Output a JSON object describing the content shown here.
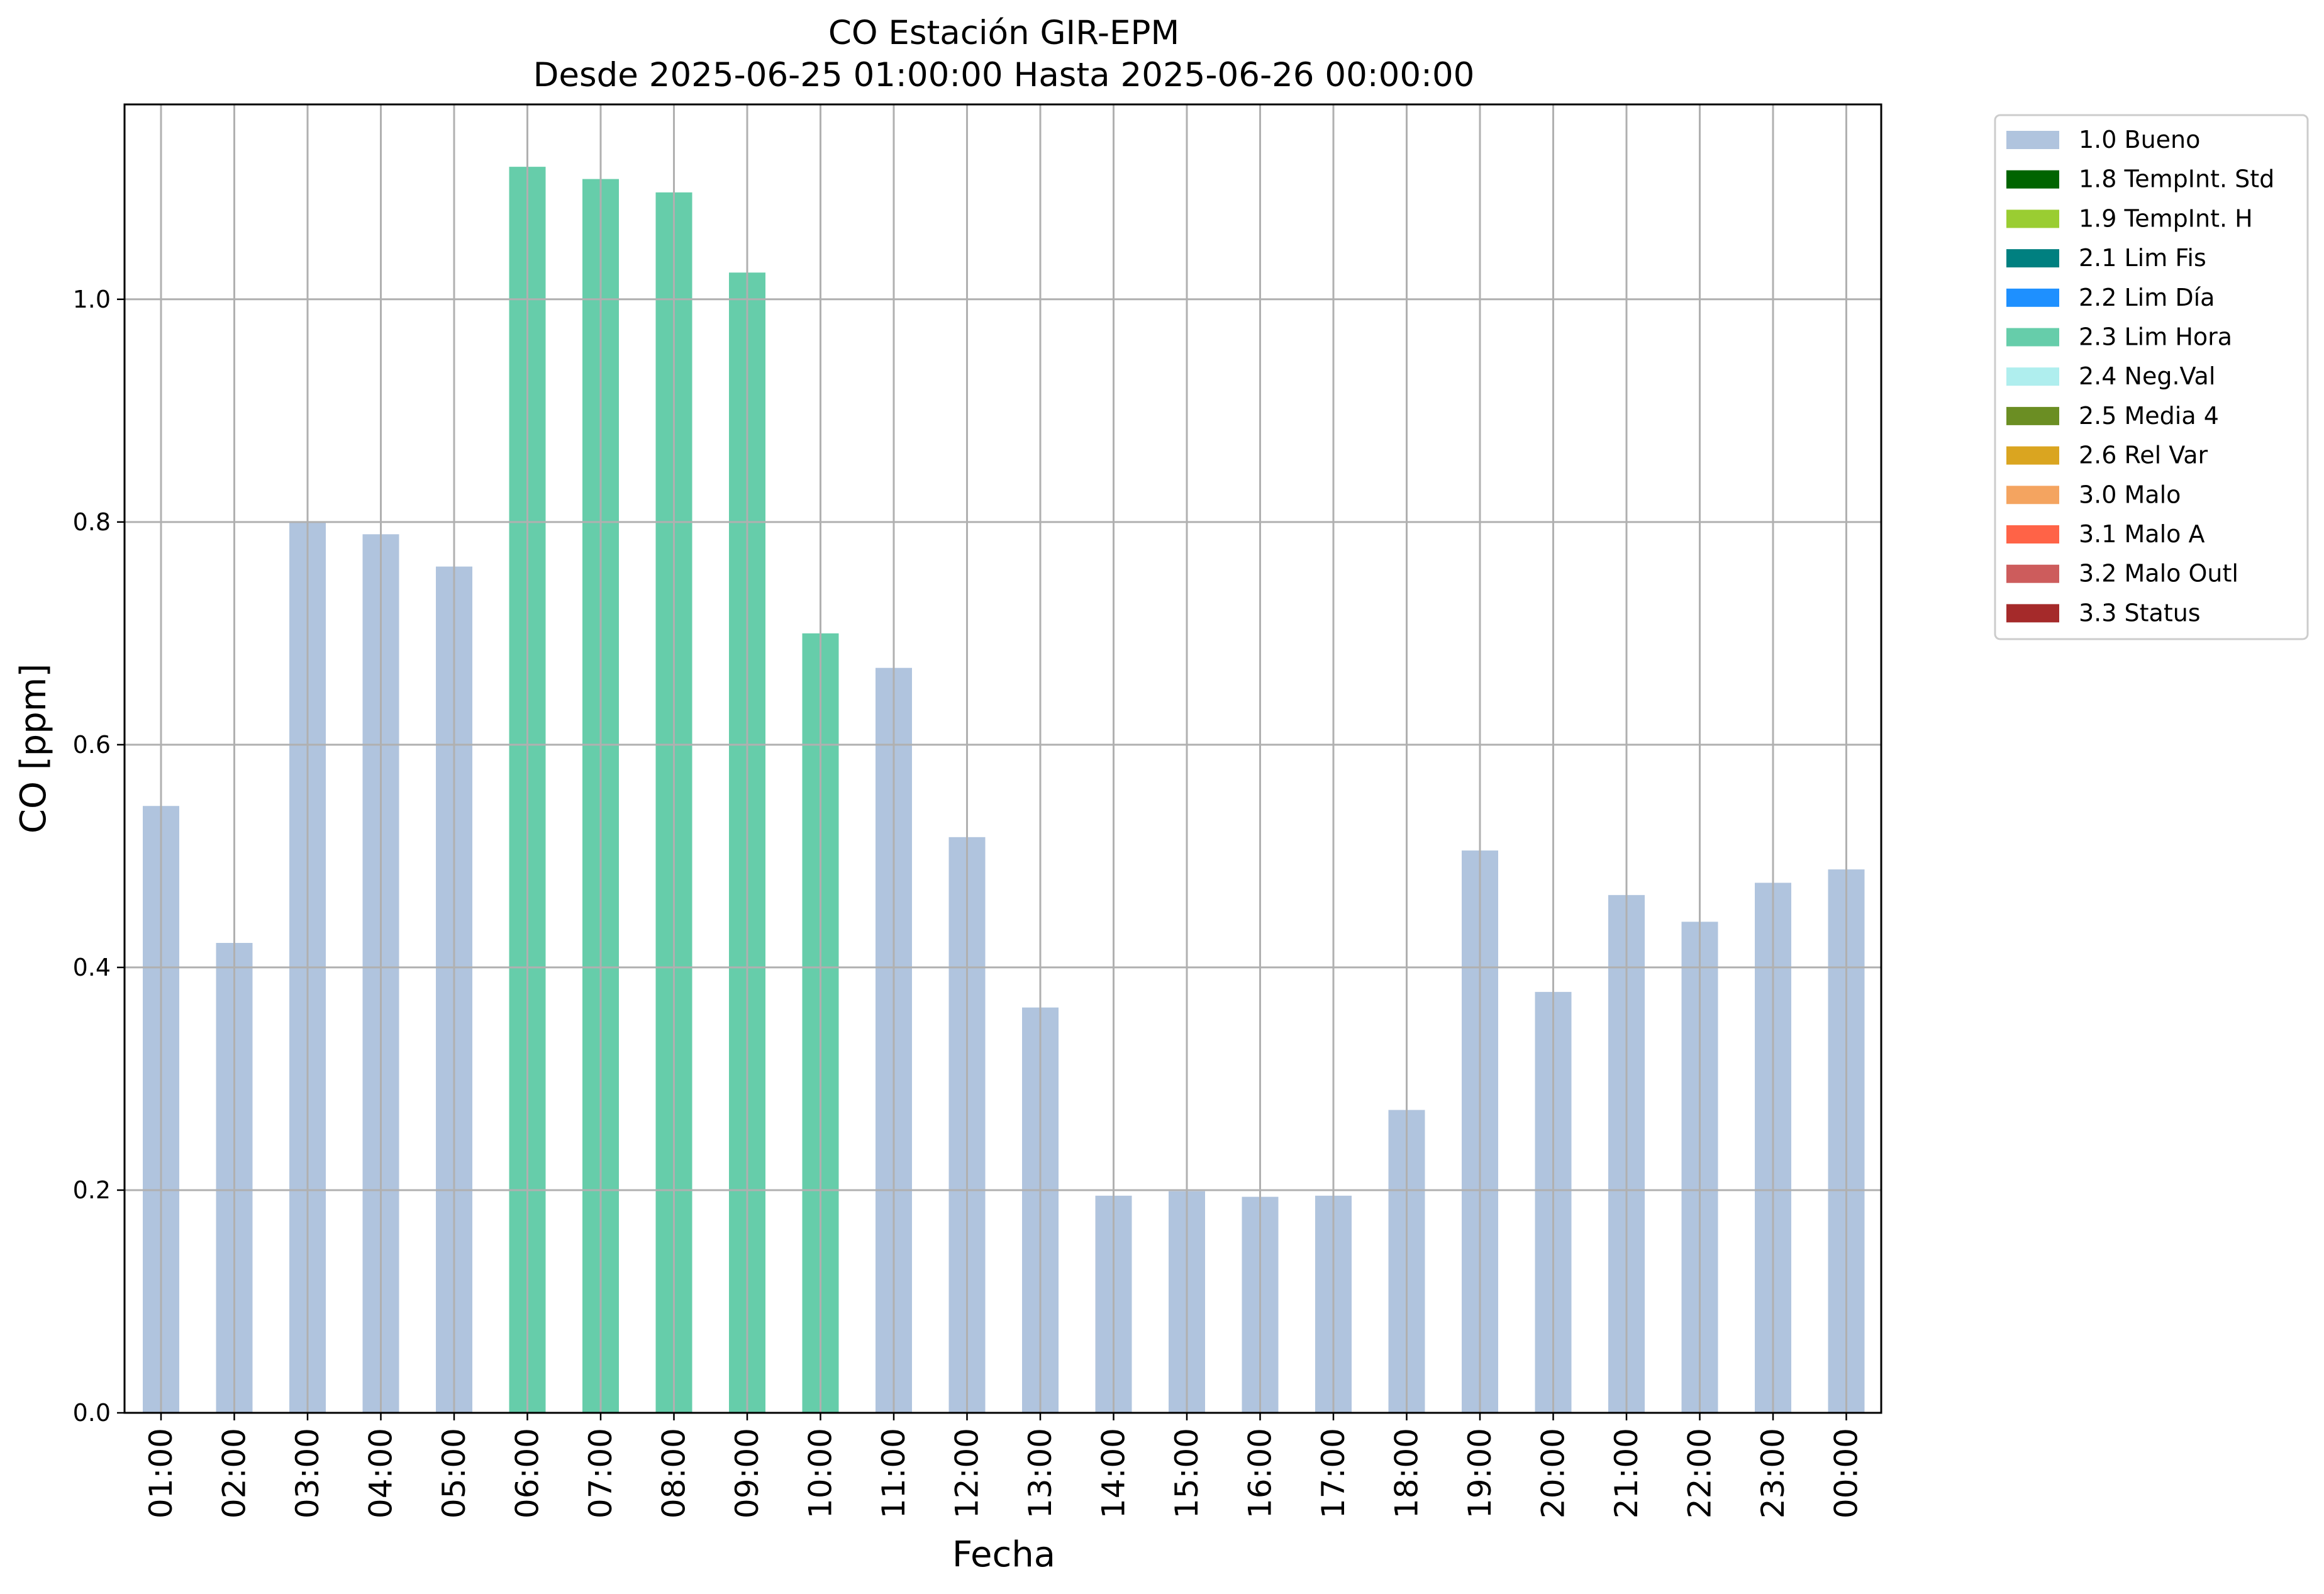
{
  "chart_data": {
    "type": "bar",
    "title": "CO Estación GIR-EPM",
    "subtitle": "Desde 2025-06-25 01:00:00 Hasta 2025-06-26 00:00:00",
    "xlabel": "Fecha",
    "ylabel": "CO [ppm]",
    "ylim": [
      0,
      1.175
    ],
    "yticks": [
      "0.0",
      "0.2",
      "0.4",
      "0.6",
      "0.8",
      "1.0"
    ],
    "grid": true,
    "legend_position": "outside-right-top",
    "categories": [
      "01:00",
      "02:00",
      "03:00",
      "04:00",
      "05:00",
      "06:00",
      "07:00",
      "08:00",
      "09:00",
      "10:00",
      "11:00",
      "12:00",
      "13:00",
      "14:00",
      "15:00",
      "16:00",
      "17:00",
      "18:00",
      "19:00",
      "20:00",
      "21:00",
      "22:00",
      "23:00",
      "00:00"
    ],
    "values": [
      0.545,
      0.422,
      0.8,
      0.789,
      0.76,
      1.119,
      1.108,
      1.096,
      1.024,
      0.7,
      0.669,
      0.517,
      0.364,
      0.195,
      0.199,
      0.194,
      0.195,
      0.272,
      0.505,
      0.378,
      0.465,
      0.441,
      0.476,
      0.488
    ],
    "flags": [
      "1.0",
      "1.0",
      "1.0",
      "1.0",
      "1.0",
      "2.3",
      "2.3",
      "2.3",
      "2.3",
      "2.3",
      "1.0",
      "1.0",
      "1.0",
      "1.0",
      "1.0",
      "1.0",
      "1.0",
      "1.0",
      "1.0",
      "1.0",
      "1.0",
      "1.0",
      "1.0",
      "1.0"
    ],
    "legend": [
      {
        "code": "1.0",
        "label": "1.0 Bueno",
        "color": "#b0c4de"
      },
      {
        "code": "1.8",
        "label": "1.8 TempInt. Std",
        "color": "#006400"
      },
      {
        "code": "1.9",
        "label": "1.9 TempInt. H",
        "color": "#9acd32"
      },
      {
        "code": "2.1",
        "label": "2.1 Lim Fis",
        "color": "#008080"
      },
      {
        "code": "2.2",
        "label": "2.2 Lim Día",
        "color": "#1e90ff"
      },
      {
        "code": "2.3",
        "label": "2.3 Lim Hora",
        "color": "#66cdaa"
      },
      {
        "code": "2.4",
        "label": "2.4 Neg.Val",
        "color": "#afeeee"
      },
      {
        "code": "2.5",
        "label": "2.5 Media 4",
        "color": "#6b8e23"
      },
      {
        "code": "2.6",
        "label": "2.6 Rel Var",
        "color": "#daa520"
      },
      {
        "code": "3.0",
        "label": "3.0 Malo",
        "color": "#f4a460"
      },
      {
        "code": "3.1",
        "label": "3.1 Malo A",
        "color": "#ff6347"
      },
      {
        "code": "3.2",
        "label": "3.2 Malo Outl",
        "color": "#cd5c5c"
      },
      {
        "code": "3.3",
        "label": "3.3 Status",
        "color": "#a52a2a"
      }
    ]
  }
}
